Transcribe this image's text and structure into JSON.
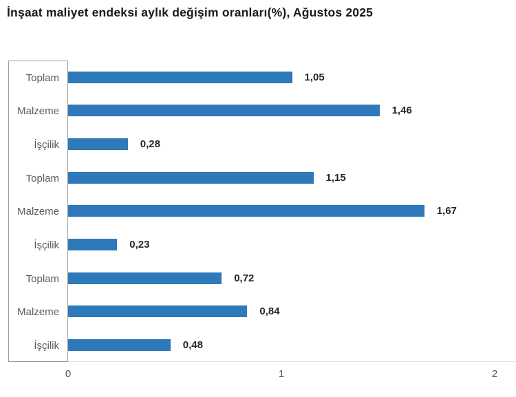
{
  "title": "İnşaat maliyet endeksi aylık değişim oranları(%), Ağustos 2025",
  "chart_data": {
    "type": "bar",
    "orientation": "horizontal",
    "title": "İnşaat maliyet endeksi aylık değişim oranları(%), Ağustos 2025",
    "categories": [
      "Toplam",
      "Malzeme",
      "İşçilik",
      "Toplam",
      "Malzeme",
      "İşçilik",
      "Toplam",
      "Malzeme",
      "İşçilik"
    ],
    "values": [
      1.05,
      1.46,
      0.28,
      1.15,
      1.67,
      0.23,
      0.72,
      0.84,
      0.48
    ],
    "value_labels": [
      "1,05",
      "1,46",
      "0,28",
      "1,15",
      "1,67",
      "0,23",
      "0,72",
      "0,84",
      "0,48"
    ],
    "xlabel": "",
    "ylabel": "",
    "xlim": [
      0,
      2.1
    ],
    "x_ticks": [
      {
        "value": 0,
        "label": "0"
      },
      {
        "value": 1,
        "label": "1"
      },
      {
        "value": 2,
        "label": "2"
      }
    ],
    "grid": false,
    "legend": false,
    "bar_color": "#2e79b9"
  },
  "colors": {
    "bar": "#2e79b9",
    "axis_box_border": "#9a9a9a",
    "plot_bottom_line": "#e4e4e4",
    "category_label": "#5a5a5a",
    "value_label": "#262626",
    "tick_label": "#545454",
    "title": "#1a1a1a",
    "background": "#ffffff"
  }
}
